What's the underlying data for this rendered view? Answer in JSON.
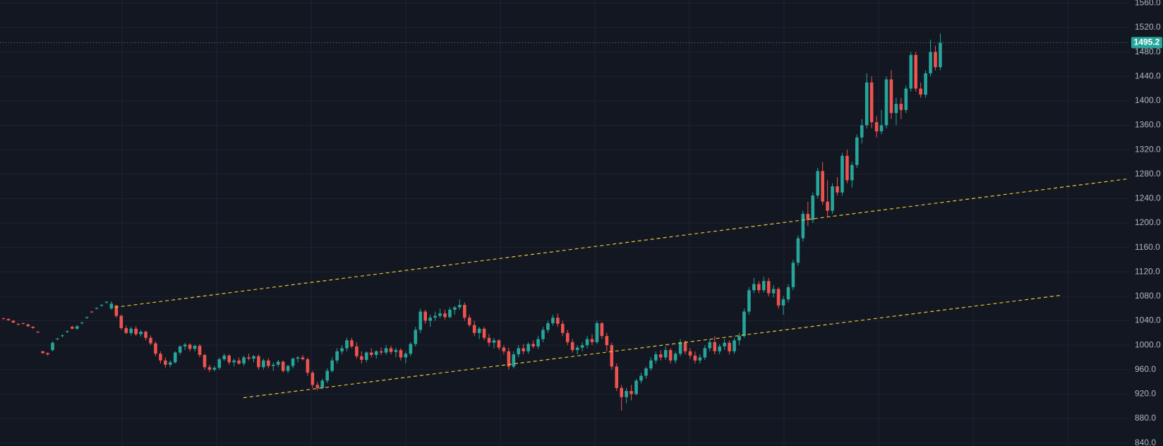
{
  "chart_data": {
    "type": "candlestick",
    "up_color": "#26a69a",
    "down_color": "#ef5350",
    "background": "#131722",
    "grid": true,
    "ylim": [
      835,
      1565
    ],
    "yticks": [
      {
        "value": 1560,
        "label": "1560.0"
      },
      {
        "value": 1520,
        "label": "1520.0"
      },
      {
        "value": 1480,
        "label": "1480.0"
      },
      {
        "value": 1440,
        "label": "1440.0"
      },
      {
        "value": 1400,
        "label": "1400.0"
      },
      {
        "value": 1360,
        "label": "1360.0"
      },
      {
        "value": 1320,
        "label": "1320.0"
      },
      {
        "value": 1280,
        "label": "1280.0"
      },
      {
        "value": 1240,
        "label": "1240.0"
      },
      {
        "value": 1200,
        "label": "1200.0"
      },
      {
        "value": 1160,
        "label": "1160.0"
      },
      {
        "value": 1120,
        "label": "1120.0"
      },
      {
        "value": 1080,
        "label": "1080.0"
      },
      {
        "value": 1040,
        "label": "1040.0"
      },
      {
        "value": 1000,
        "label": "1000.0"
      },
      {
        "value": 960,
        "label": "960.0"
      },
      {
        "value": 920,
        "label": "920.0"
      },
      {
        "value": 880,
        "label": "880.0"
      },
      {
        "value": 840,
        "label": "840.0"
      }
    ],
    "last_price": 1495.2,
    "trendlines": [
      {
        "color": "#e6c435",
        "points": [
          [
            22.7,
            1062
          ],
          [
            229,
            1272
          ]
        ]
      },
      {
        "color": "#e6c435",
        "points": [
          [
            48.9,
            914
          ],
          [
            215.9,
            1082
          ]
        ]
      }
    ],
    "candles": [
      [
        1044,
        1045,
        1042,
        1043
      ],
      [
        1043,
        1044,
        1040,
        1041
      ],
      [
        1040,
        1041,
        1036,
        1037
      ],
      [
        1035,
        1036,
        1032,
        1034
      ],
      [
        1036,
        1037,
        1034,
        1035
      ],
      [
        1034,
        1035,
        1030,
        1031
      ],
      [
        1030,
        1031,
        1027,
        1028
      ],
      [
        1022,
        1023,
        1020,
        1021
      ],
      [
        990,
        991,
        986,
        987
      ],
      [
        987,
        988,
        983,
        985
      ],
      [
        992,
        1006,
        990,
        1004
      ],
      [
        1010,
        1012,
        1008,
        1011
      ],
      [
        1015,
        1018,
        1013,
        1016
      ],
      [
        1022,
        1024,
        1020,
        1023
      ],
      [
        1030,
        1032,
        1026,
        1027
      ],
      [
        1027,
        1033,
        1025,
        1031
      ],
      [
        1036,
        1038,
        1034,
        1037
      ],
      [
        1045,
        1047,
        1043,
        1046
      ],
      [
        1055,
        1056,
        1053,
        1054
      ],
      [
        1060,
        1062,
        1058,
        1061
      ],
      [
        1065,
        1067,
        1063,
        1066
      ],
      [
        1070,
        1072,
        1068,
        1071
      ],
      [
        1060,
        1072,
        1058,
        1068
      ],
      [
        1065,
        1066,
        1045,
        1048
      ],
      [
        1048,
        1050,
        1025,
        1028
      ],
      [
        1028,
        1032,
        1018,
        1020
      ],
      [
        1020,
        1030,
        1016,
        1027
      ],
      [
        1027,
        1031,
        1015,
        1018
      ],
      [
        1018,
        1025,
        1014,
        1022
      ],
      [
        1022,
        1024,
        1008,
        1012
      ],
      [
        1012,
        1016,
        1000,
        1003
      ],
      [
        1003,
        1006,
        982,
        986
      ],
      [
        986,
        990,
        970,
        975
      ],
      [
        975,
        980,
        963,
        968
      ],
      [
        968,
        975,
        964,
        972
      ],
      [
        972,
        990,
        970,
        988
      ],
      [
        988,
        1000,
        984,
        998
      ],
      [
        998,
        1004,
        992,
        1001
      ],
      [
        1001,
        1003,
        990,
        994
      ],
      [
        994,
        1001,
        990,
        999
      ],
      [
        999,
        1002,
        980,
        984
      ],
      [
        984,
        986,
        960,
        964
      ],
      [
        964,
        968,
        956,
        960
      ],
      [
        960,
        966,
        957,
        963
      ],
      [
        963,
        980,
        960,
        977
      ],
      [
        977,
        986,
        974,
        983
      ],
      [
        983,
        985,
        968,
        972
      ],
      [
        972,
        978,
        965,
        975
      ],
      [
        975,
        980,
        968,
        970
      ],
      [
        970,
        983,
        966,
        980
      ],
      [
        980,
        986,
        975,
        978
      ],
      [
        978,
        984,
        972,
        982
      ],
      [
        982,
        985,
        960,
        964
      ],
      [
        964,
        978,
        960,
        975
      ],
      [
        975,
        979,
        962,
        966
      ],
      [
        966,
        972,
        958,
        968
      ],
      [
        968,
        976,
        964,
        973
      ],
      [
        973,
        975,
        955,
        958
      ],
      [
        958,
        968,
        954,
        966
      ],
      [
        966,
        980,
        962,
        978
      ],
      [
        978,
        982,
        972,
        980
      ],
      [
        980,
        984,
        975,
        977
      ],
      [
        977,
        980,
        950,
        955
      ],
      [
        955,
        958,
        930,
        935
      ],
      [
        935,
        940,
        926,
        930
      ],
      [
        930,
        945,
        928,
        942
      ],
      [
        942,
        962,
        938,
        958
      ],
      [
        958,
        980,
        955,
        975
      ],
      [
        975,
        995,
        970,
        990
      ],
      [
        990,
        1000,
        985,
        995
      ],
      [
        995,
        1012,
        990,
        1008
      ],
      [
        1008,
        1012,
        995,
        998
      ],
      [
        998,
        1005,
        978,
        982
      ],
      [
        982,
        990,
        970,
        976
      ],
      [
        976,
        990,
        972,
        988
      ],
      [
        988,
        995,
        980,
        984
      ],
      [
        984,
        992,
        978,
        990
      ],
      [
        990,
        996,
        984,
        988
      ],
      [
        988,
        1000,
        984,
        995
      ],
      [
        995,
        999,
        985,
        989
      ],
      [
        989,
        996,
        980,
        992
      ],
      [
        992,
        995,
        975,
        980
      ],
      [
        980,
        990,
        970,
        986
      ],
      [
        986,
        1005,
        982,
        1002
      ],
      [
        1002,
        1030,
        998,
        1025
      ],
      [
        1025,
        1060,
        1020,
        1055
      ],
      [
        1055,
        1058,
        1035,
        1040
      ],
      [
        1040,
        1050,
        1030,
        1045
      ],
      [
        1045,
        1055,
        1040,
        1048
      ],
      [
        1048,
        1060,
        1044,
        1052
      ],
      [
        1052,
        1058,
        1042,
        1046
      ],
      [
        1046,
        1062,
        1044,
        1058
      ],
      [
        1058,
        1064,
        1050,
        1062
      ],
      [
        1062,
        1075,
        1058,
        1066
      ],
      [
        1066,
        1070,
        1040,
        1045
      ],
      [
        1045,
        1050,
        1030,
        1033
      ],
      [
        1033,
        1040,
        1015,
        1020
      ],
      [
        1020,
        1030,
        1010,
        1027
      ],
      [
        1027,
        1030,
        1008,
        1012
      ],
      [
        1012,
        1018,
        998,
        1004
      ],
      [
        1004,
        1012,
        995,
        1008
      ],
      [
        1008,
        1010,
        992,
        996
      ],
      [
        996,
        1000,
        985,
        990
      ],
      [
        990,
        996,
        960,
        965
      ],
      [
        965,
        990,
        962,
        985
      ],
      [
        985,
        1000,
        980,
        995
      ],
      [
        995,
        1002,
        985,
        990
      ],
      [
        990,
        1005,
        986,
        1002
      ],
      [
        1002,
        1008,
        995,
        998
      ],
      [
        998,
        1015,
        994,
        1010
      ],
      [
        1010,
        1030,
        1005,
        1025
      ],
      [
        1025,
        1040,
        1020,
        1036
      ],
      [
        1036,
        1050,
        1032,
        1045
      ],
      [
        1045,
        1052,
        1030,
        1035
      ],
      [
        1035,
        1040,
        1015,
        1020
      ],
      [
        1020,
        1025,
        1000,
        1005
      ],
      [
        1005,
        1010,
        988,
        992
      ],
      [
        992,
        1000,
        985,
        996
      ],
      [
        996,
        1005,
        990,
        1000
      ],
      [
        1000,
        1015,
        995,
        1010
      ],
      [
        1010,
        1018,
        1000,
        1005
      ],
      [
        1005,
        1040,
        1002,
        1036
      ],
      [
        1036,
        1038,
        1010,
        1015
      ],
      [
        1015,
        1020,
        990,
        1000
      ],
      [
        1000,
        1004,
        960,
        965
      ],
      [
        965,
        970,
        925,
        930
      ],
      [
        930,
        935,
        893,
        915
      ],
      [
        915,
        930,
        905,
        925
      ],
      [
        925,
        935,
        910,
        920
      ],
      [
        920,
        945,
        918,
        942
      ],
      [
        942,
        955,
        938,
        950
      ],
      [
        950,
        965,
        945,
        962
      ],
      [
        962,
        980,
        958,
        975
      ],
      [
        975,
        990,
        970,
        985
      ],
      [
        985,
        992,
        975,
        980
      ],
      [
        980,
        998,
        976,
        992
      ],
      [
        992,
        995,
        970,
        975
      ],
      [
        975,
        990,
        970,
        986
      ],
      [
        986,
        1010,
        982,
        1005
      ],
      [
        1005,
        1008,
        985,
        990
      ],
      [
        990,
        995,
        978,
        983
      ],
      [
        983,
        990,
        970,
        975
      ],
      [
        975,
        985,
        970,
        980
      ],
      [
        980,
        1000,
        976,
        995
      ],
      [
        995,
        1010,
        990,
        1005
      ],
      [
        1005,
        1015,
        985,
        990
      ],
      [
        990,
        1002,
        985,
        998
      ],
      [
        998,
        1010,
        992,
        1004
      ],
      [
        1004,
        1008,
        985,
        990
      ],
      [
        990,
        1012,
        986,
        1008
      ],
      [
        1008,
        1020,
        1000,
        1015
      ],
      [
        1015,
        1060,
        1012,
        1055
      ],
      [
        1055,
        1095,
        1050,
        1090
      ],
      [
        1090,
        1110,
        1085,
        1100
      ],
      [
        1100,
        1105,
        1085,
        1090
      ],
      [
        1090,
        1112,
        1086,
        1105
      ],
      [
        1105,
        1110,
        1080,
        1085
      ],
      [
        1085,
        1098,
        1078,
        1092
      ],
      [
        1092,
        1095,
        1060,
        1065
      ],
      [
        1065,
        1080,
        1050,
        1075
      ],
      [
        1075,
        1100,
        1070,
        1095
      ],
      [
        1095,
        1140,
        1090,
        1135
      ],
      [
        1135,
        1180,
        1130,
        1175
      ],
      [
        1175,
        1220,
        1170,
        1215
      ],
      [
        1215,
        1235,
        1195,
        1205
      ],
      [
        1205,
        1250,
        1200,
        1245
      ],
      [
        1245,
        1290,
        1240,
        1285
      ],
      [
        1285,
        1300,
        1230,
        1235
      ],
      [
        1235,
        1270,
        1210,
        1220
      ],
      [
        1220,
        1265,
        1215,
        1260
      ],
      [
        1260,
        1275,
        1245,
        1250
      ],
      [
        1250,
        1315,
        1245,
        1310
      ],
      [
        1310,
        1320,
        1265,
        1270
      ],
      [
        1270,
        1300,
        1258,
        1295
      ],
      [
        1295,
        1345,
        1290,
        1340
      ],
      [
        1340,
        1370,
        1330,
        1360
      ],
      [
        1360,
        1445,
        1355,
        1430
      ],
      [
        1430,
        1440,
        1355,
        1365
      ],
      [
        1365,
        1375,
        1340,
        1350
      ],
      [
        1350,
        1385,
        1345,
        1360
      ],
      [
        1360,
        1440,
        1355,
        1435
      ],
      [
        1435,
        1450,
        1370,
        1380
      ],
      [
        1380,
        1405,
        1360,
        1395
      ],
      [
        1395,
        1405,
        1370,
        1385
      ],
      [
        1385,
        1425,
        1380,
        1420
      ],
      [
        1420,
        1480,
        1415,
        1475
      ],
      [
        1475,
        1480,
        1415,
        1420
      ],
      [
        1420,
        1430,
        1405,
        1410
      ],
      [
        1410,
        1450,
        1405,
        1445
      ],
      [
        1445,
        1500,
        1440,
        1480
      ],
      [
        1480,
        1490,
        1450,
        1455
      ],
      [
        1455,
        1510,
        1450,
        1495.2
      ]
    ]
  }
}
